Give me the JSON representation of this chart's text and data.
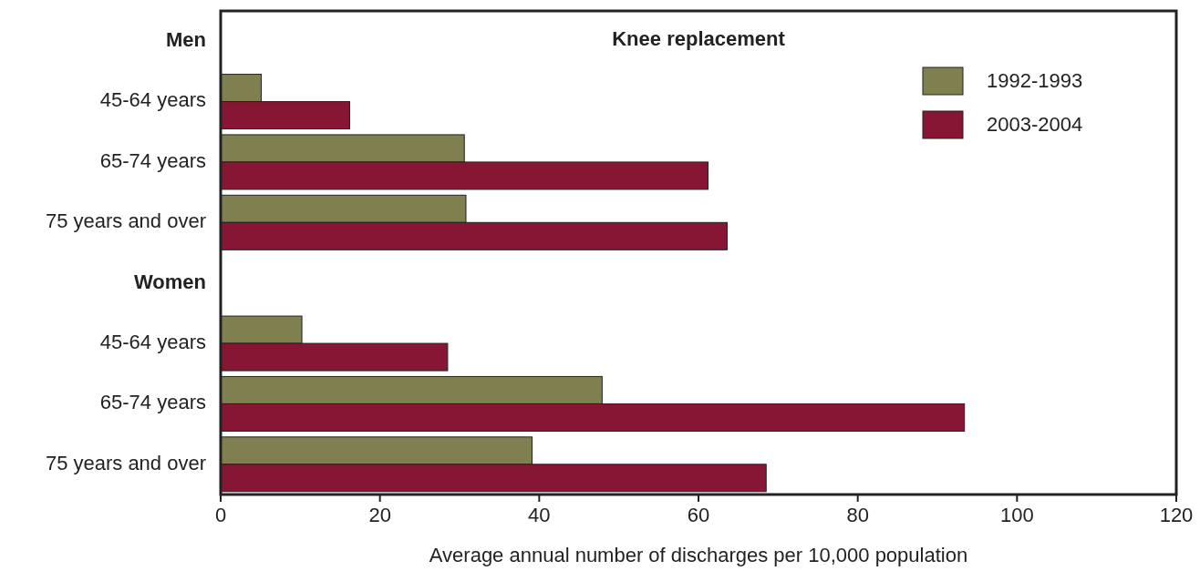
{
  "chart_data": {
    "type": "bar",
    "orientation": "horizontal",
    "title": "Knee replacement",
    "xlabel": "Average annual number of discharges per 10,000 population",
    "categories": [
      "Men",
      "45-64 years",
      "65-74 years",
      "75 years and over",
      "Women",
      "45-64 years",
      "65-74 years",
      "75 years and over"
    ],
    "series": [
      {
        "name": "1992-1993",
        "color": "#807f50",
        "values": [
          null,
          5.1,
          30.6,
          30.8,
          null,
          10.2,
          47.9,
          39.1
        ]
      },
      {
        "name": "2003-2004",
        "color": "#861633",
        "values": [
          null,
          16.2,
          61.2,
          63.6,
          null,
          28.5,
          93.4,
          68.5
        ]
      }
    ],
    "xlim": [
      0,
      120
    ],
    "xticks": [
      0,
      20,
      40,
      60,
      80,
      100,
      120
    ],
    "legend": "top right",
    "grid": false
  }
}
